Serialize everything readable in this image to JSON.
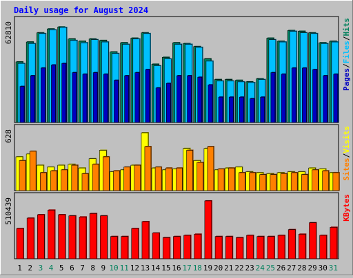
{
  "chart_data": {
    "type": "bar",
    "title": "Daily usage for August 2024",
    "days": [
      "1",
      "2",
      "3",
      "4",
      "5",
      "6",
      "7",
      "8",
      "9",
      "10",
      "11",
      "12",
      "13",
      "14",
      "15",
      "16",
      "17",
      "18",
      "19",
      "20",
      "21",
      "22",
      "23",
      "24",
      "25",
      "26",
      "27",
      "28",
      "29",
      "30",
      "31"
    ],
    "weekend_days": [
      "3",
      "4",
      "10",
      "11",
      "17",
      "18",
      "24",
      "25",
      "31"
    ],
    "panels": [
      {
        "id": "hits",
        "max_label": "62810",
        "ymax": 66500,
        "label_parts": [
          "Pages",
          "Files",
          "Hits"
        ],
        "series": [
          {
            "name": "Hits",
            "color": "#00805c",
            "values": [
              40000,
              53000,
              59000,
              61500,
              62810,
              55000,
              53500,
              55000,
              54000,
              46500,
              52500,
              55500,
              59000,
              38500,
              43000,
              52500,
              52000,
              50000,
              42000,
              28500,
              28500,
              28000,
              27000,
              29000,
              55500,
              53500,
              60500,
              60000,
              59000,
              52500,
              53500
            ]
          },
          {
            "name": "Files",
            "color": "#00c0ff",
            "values": [
              39000,
              52000,
              58500,
              61000,
              62500,
              54000,
              52500,
              54500,
              53000,
              45500,
              51500,
              55000,
              58500,
              37500,
              42000,
              51500,
              51500,
              49500,
              40500,
              27500,
              27500,
              27000,
              26500,
              28500,
              54500,
              53000,
              60000,
              59000,
              58500,
              52000,
              53000
            ]
          },
          {
            "name": "Pages",
            "color": "#0000c0",
            "values": [
              24000,
              31000,
              36000,
              38000,
              39000,
              33000,
              32000,
              33000,
              32000,
              28000,
              31000,
              33000,
              35000,
              23000,
              26000,
              31000,
              31000,
              30000,
              25000,
              17000,
              17000,
              17000,
              16000,
              17000,
              33000,
              32000,
              36000,
              36000,
              35000,
              31000,
              32000
            ]
          }
        ]
      },
      {
        "id": "visits",
        "max_label": "628",
        "ymax": 665,
        "label_parts": [
          "Sites",
          "Visits"
        ],
        "series": [
          {
            "name": "Visits",
            "color": "#ffff00",
            "values": [
              370,
              400,
              280,
              260,
              280,
              290,
              250,
              350,
              440,
              210,
              230,
              280,
              628,
              250,
              230,
              240,
              460,
              330,
              460,
              230,
              250,
              260,
              210,
              200,
              190,
              200,
              210,
              210,
              250,
              240,
              200
            ]
          },
          {
            "name": "Sites",
            "color": "#ff8000",
            "values": [
              330,
              430,
              200,
              220,
              230,
              280,
              190,
              290,
              370,
              220,
              260,
              280,
              480,
              260,
              250,
              250,
              440,
              310,
              480,
              240,
              250,
              200,
              200,
              180,
              180,
              190,
              200,
              180,
              230,
              220,
              200
            ]
          }
        ]
      },
      {
        "id": "kbytes",
        "max_label": "510439",
        "ymax": 540000,
        "label_parts": [
          "KBytes"
        ],
        "series": [
          {
            "name": "KBytes",
            "color": "#ff0000",
            "values": [
              270000,
              360000,
              390000,
              430000,
              390000,
              380000,
              370000,
              400000,
              380000,
              200000,
              200000,
              270000,
              330000,
              230000,
              190000,
              200000,
              210000,
              220000,
              510439,
              200000,
              200000,
              190000,
              210000,
              200000,
              200000,
              210000,
              260000,
              220000,
              320000,
              210000,
              280000
            ]
          }
        ]
      }
    ]
  }
}
